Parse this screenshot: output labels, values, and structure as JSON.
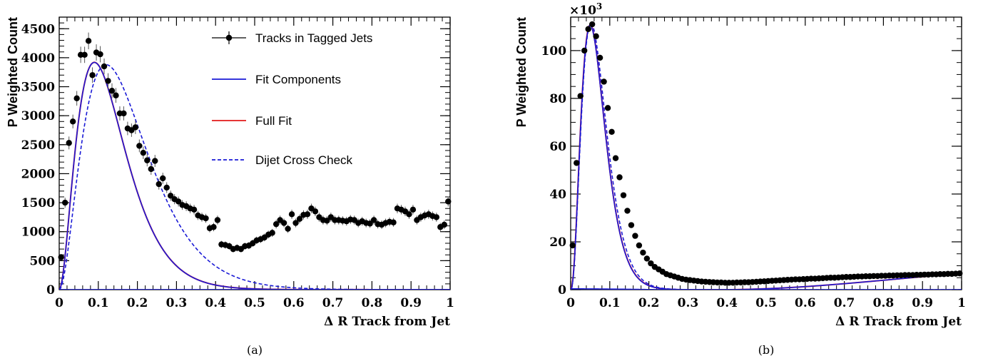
{
  "chart_data": [
    {
      "type": "scatter",
      "caption": "(a)",
      "xlabel": "Δ R Track from Jet",
      "ylabel": "P Weighted Count",
      "xlim": [
        0,
        1
      ],
      "ylim": [
        0,
        4700
      ],
      "xticks": [
        0,
        0.1,
        0.2,
        0.3,
        0.4,
        0.5,
        0.6,
        0.7,
        0.8,
        0.9,
        1
      ],
      "xtick_labels": [
        "0",
        "0.1",
        "0.2",
        "0.3",
        "0.4",
        "0.5",
        "0.6",
        "0.7",
        "0.8",
        "0.9",
        "1"
      ],
      "yticks": [
        0,
        500,
        1000,
        1500,
        2000,
        2500,
        3000,
        3500,
        4000,
        4500
      ],
      "ytick_labels": [
        "0",
        "500",
        "1000",
        "1500",
        "2000",
        "2500",
        "3000",
        "3500",
        "4000",
        "4500"
      ],
      "legend": [
        {
          "label": "Tracks in Tagged Jets",
          "style": "marker-errorbar",
          "color": "#000000"
        },
        {
          "label": "Fit Components",
          "style": "solid",
          "color": "#1a1ad6"
        },
        {
          "label": "Full Fit",
          "style": "solid",
          "color": "#e31a1a"
        },
        {
          "label": "Dijet Cross Check",
          "style": "dashed",
          "color": "#1a1ad6"
        }
      ],
      "legend_position": "top-right",
      "series": [
        {
          "name": "Tracks in Tagged Jets",
          "kind": "points",
          "x": [
            0.005,
            0.015,
            0.025,
            0.035,
            0.045,
            0.055,
            0.065,
            0.075,
            0.085,
            0.095,
            0.105,
            0.115,
            0.125,
            0.135,
            0.145,
            0.155,
            0.165,
            0.175,
            0.185,
            0.195,
            0.205,
            0.215,
            0.225,
            0.235,
            0.245,
            0.255,
            0.265,
            0.275,
            0.285,
            0.295,
            0.305,
            0.315,
            0.325,
            0.335,
            0.345,
            0.355,
            0.365,
            0.375,
            0.385,
            0.395,
            0.405,
            0.415,
            0.425,
            0.435,
            0.445,
            0.455,
            0.465,
            0.475,
            0.485,
            0.495,
            0.505,
            0.515,
            0.525,
            0.535,
            0.545,
            0.555,
            0.565,
            0.575,
            0.585,
            0.595,
            0.605,
            0.615,
            0.625,
            0.635,
            0.645,
            0.655,
            0.665,
            0.675,
            0.685,
            0.695,
            0.705,
            0.715,
            0.725,
            0.735,
            0.745,
            0.755,
            0.765,
            0.775,
            0.785,
            0.795,
            0.805,
            0.815,
            0.825,
            0.835,
            0.845,
            0.855,
            0.865,
            0.875,
            0.885,
            0.895,
            0.905,
            0.915,
            0.925,
            0.935,
            0.945,
            0.955,
            0.965,
            0.975,
            0.985,
            0.995
          ],
          "y": [
            560,
            1500,
            2530,
            2900,
            3300,
            4050,
            4050,
            4290,
            3700,
            4090,
            4060,
            3850,
            3600,
            3430,
            3350,
            3040,
            3040,
            2780,
            2750,
            2800,
            2480,
            2360,
            2230,
            2080,
            2220,
            1820,
            1920,
            1760,
            1620,
            1560,
            1520,
            1460,
            1440,
            1400,
            1380,
            1280,
            1250,
            1230,
            1060,
            1080,
            1200,
            780,
            770,
            750,
            700,
            720,
            700,
            750,
            760,
            800,
            850,
            870,
            900,
            950,
            980,
            1130,
            1200,
            1150,
            1050,
            1300,
            1150,
            1220,
            1290,
            1300,
            1400,
            1350,
            1250,
            1200,
            1190,
            1250,
            1200,
            1200,
            1190,
            1180,
            1210,
            1200,
            1150,
            1180,
            1150,
            1140,
            1200,
            1130,
            1120,
            1150,
            1170,
            1160,
            1400,
            1380,
            1350,
            1300,
            1380,
            1200,
            1250,
            1280,
            1300,
            1270,
            1250,
            1080,
            1120,
            1520
          ]
        },
        {
          "name": "Fit Components",
          "kind": "component",
          "model": "gamma",
          "amp": 3920,
          "peak": 0.09,
          "shape": 2.0
        },
        {
          "name": "Fit Components",
          "kind": "component",
          "model": "rising",
          "params": [
            0,
            0.75,
            1200,
            0.25,
            0.95,
            1030,
            1,
            1330
          ]
        },
        {
          "name": "Full Fit",
          "kind": "sum"
        },
        {
          "name": "Dijet Cross Check",
          "kind": "component",
          "model": "gamma",
          "amp": 3880,
          "peak": 0.12,
          "shape": 2.0
        }
      ]
    },
    {
      "type": "scatter",
      "caption": "(b)",
      "xlabel": "Δ R Track from Jet",
      "ylabel": "P Weighted Count",
      "multiplier_base": "×10",
      "multiplier_exp": "3",
      "xlim": [
        0,
        1
      ],
      "ylim": [
        0,
        114
      ],
      "xticks": [
        0,
        0.1,
        0.2,
        0.3,
        0.4,
        0.5,
        0.6,
        0.7,
        0.8,
        0.9,
        1
      ],
      "xtick_labels": [
        "0",
        "0.1",
        "0.2",
        "0.3",
        "0.4",
        "0.5",
        "0.6",
        "0.7",
        "0.8",
        "0.9",
        "1"
      ],
      "yticks": [
        0,
        20,
        40,
        60,
        80,
        100
      ],
      "ytick_labels": [
        "0",
        "20",
        "40",
        "60",
        "80",
        "100"
      ],
      "series": [
        {
          "name": "points",
          "kind": "points",
          "x": [
            0.005,
            0.015,
            0.025,
            0.035,
            0.045,
            0.055,
            0.065,
            0.075,
            0.085,
            0.095,
            0.105,
            0.115,
            0.125,
            0.135,
            0.145,
            0.155,
            0.165,
            0.175,
            0.185,
            0.195,
            0.205,
            0.215,
            0.225,
            0.235,
            0.245,
            0.255,
            0.265,
            0.275,
            0.285,
            0.295,
            0.305,
            0.315,
            0.325,
            0.335,
            0.345,
            0.355,
            0.365,
            0.375,
            0.385,
            0.395,
            0.405,
            0.415,
            0.425,
            0.435,
            0.445,
            0.455,
            0.465,
            0.475,
            0.485,
            0.495,
            0.505,
            0.515,
            0.525,
            0.535,
            0.545,
            0.555,
            0.565,
            0.575,
            0.585,
            0.595,
            0.605,
            0.615,
            0.625,
            0.635,
            0.645,
            0.655,
            0.665,
            0.675,
            0.685,
            0.695,
            0.705,
            0.715,
            0.725,
            0.735,
            0.745,
            0.755,
            0.765,
            0.775,
            0.785,
            0.795,
            0.805,
            0.815,
            0.825,
            0.835,
            0.845,
            0.855,
            0.865,
            0.875,
            0.885,
            0.895,
            0.905,
            0.915,
            0.925,
            0.935,
            0.945,
            0.955,
            0.965,
            0.975,
            0.985,
            0.995
          ],
          "y": [
            18.5,
            53.0,
            81.0,
            100.0,
            109.0,
            111.0,
            106.0,
            97.0,
            87.0,
            76.0,
            66.0,
            55.0,
            47.0,
            39.5,
            33.0,
            27.0,
            22.5,
            18.5,
            15.5,
            13.0,
            11.0,
            9.5,
            8.5,
            7.5,
            6.5,
            6.0,
            5.5,
            5.0,
            4.5,
            4.2,
            4.0,
            3.8,
            3.6,
            3.4,
            3.3,
            3.2,
            3.1,
            3.0,
            3.0,
            2.9,
            2.9,
            2.9,
            3.0,
            3.0,
            3.1,
            3.1,
            3.2,
            3.3,
            3.4,
            3.5,
            3.6,
            3.7,
            3.8,
            3.9,
            4.0,
            4.1,
            4.2,
            4.3,
            4.3,
            4.4,
            4.5,
            4.6,
            4.6,
            4.7,
            4.8,
            4.9,
            5.0,
            5.0,
            5.1,
            5.2,
            5.3,
            5.3,
            5.4,
            5.5,
            5.5,
            5.6,
            5.6,
            5.7,
            5.7,
            5.8,
            5.8,
            5.9,
            5.9,
            6.0,
            6.0,
            6.1,
            6.1,
            6.1,
            6.2,
            6.2,
            6.3,
            6.3,
            6.4,
            6.4,
            6.5,
            6.5,
            6.6,
            6.6,
            6.7,
            6.8
          ]
        },
        {
          "name": "component",
          "kind": "component",
          "model": "gamma",
          "amp": 110.5,
          "peak": 0.05,
          "shape": 2.6
        },
        {
          "name": "component",
          "kind": "component",
          "model": "rising",
          "params": [
            0,
            0.35,
            0.5,
            0.4,
            1,
            6.8
          ]
        },
        {
          "name": "sum",
          "kind": "sum"
        },
        {
          "name": "cross-check",
          "kind": "component",
          "model": "gamma",
          "amp": 111.5,
          "peak": 0.052,
          "shape": 2.6
        }
      ]
    }
  ]
}
